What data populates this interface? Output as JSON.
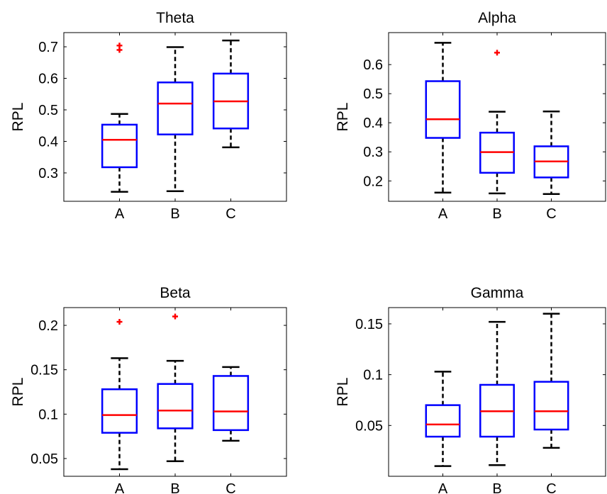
{
  "chart_data": [
    {
      "type": "box",
      "title": "Theta",
      "ylabel": "RPL",
      "categories": [
        "A",
        "B",
        "C"
      ],
      "ylim": [
        0.21,
        0.745
      ],
      "yticks": [
        0.3,
        0.4,
        0.5,
        0.6,
        0.7
      ],
      "ytick_labels": [
        "0.3",
        "0.4",
        "0.5",
        "0.6",
        "0.7"
      ],
      "boxes": [
        {
          "category": "A",
          "whisker_low": 0.24,
          "q1": 0.318,
          "median": 0.405,
          "q3": 0.453,
          "whisker_high": 0.487,
          "outliers": [
            0.704,
            0.69
          ]
        },
        {
          "category": "B",
          "whisker_low": 0.242,
          "q1": 0.422,
          "median": 0.52,
          "q3": 0.587,
          "whisker_high": 0.699,
          "outliers": []
        },
        {
          "category": "C",
          "whisker_low": 0.381,
          "q1": 0.441,
          "median": 0.527,
          "q3": 0.615,
          "whisker_high": 0.72,
          "outliers": []
        }
      ]
    },
    {
      "type": "box",
      "title": "Alpha",
      "ylabel": "RPL",
      "categories": [
        "A",
        "B",
        "C"
      ],
      "ylim": [
        0.13,
        0.71
      ],
      "yticks": [
        0.2,
        0.3,
        0.4,
        0.5,
        0.6
      ],
      "ytick_labels": [
        "0.2",
        "0.3",
        "0.4",
        "0.5",
        "0.6"
      ],
      "boxes": [
        {
          "category": "A",
          "whisker_low": 0.16,
          "q1": 0.348,
          "median": 0.412,
          "q3": 0.543,
          "whisker_high": 0.675,
          "outliers": []
        },
        {
          "category": "B",
          "whisker_low": 0.157,
          "q1": 0.228,
          "median": 0.299,
          "q3": 0.366,
          "whisker_high": 0.438,
          "outliers": [
            0.641
          ]
        },
        {
          "category": "C",
          "whisker_low": 0.155,
          "q1": 0.212,
          "median": 0.267,
          "q3": 0.319,
          "whisker_high": 0.439,
          "outliers": []
        }
      ]
    },
    {
      "type": "box",
      "title": "Beta",
      "ylabel": "RPL",
      "categories": [
        "A",
        "B",
        "C"
      ],
      "ylim": [
        0.03,
        0.22
      ],
      "yticks": [
        0.05,
        0.1,
        0.15,
        0.2
      ],
      "ytick_labels": [
        "0.05",
        "0.1",
        "0.15",
        "0.2"
      ],
      "boxes": [
        {
          "category": "A",
          "whisker_low": 0.038,
          "q1": 0.079,
          "median": 0.099,
          "q3": 0.128,
          "whisker_high": 0.163,
          "outliers": [
            0.204
          ]
        },
        {
          "category": "B",
          "whisker_low": 0.047,
          "q1": 0.084,
          "median": 0.104,
          "q3": 0.134,
          "whisker_high": 0.16,
          "outliers": [
            0.21
          ]
        },
        {
          "category": "C",
          "whisker_low": 0.07,
          "q1": 0.082,
          "median": 0.103,
          "q3": 0.143,
          "whisker_high": 0.153,
          "outliers": []
        }
      ]
    },
    {
      "type": "box",
      "title": "Gamma",
      "ylabel": "RPL",
      "categories": [
        "A",
        "B",
        "C"
      ],
      "ylim": [
        0.0,
        0.166
      ],
      "yticks": [
        0.05,
        0.1,
        0.15
      ],
      "ytick_labels": [
        "0.05",
        "0.1",
        "0.15"
      ],
      "boxes": [
        {
          "category": "A",
          "whisker_low": 0.01,
          "q1": 0.039,
          "median": 0.051,
          "q3": 0.07,
          "whisker_high": 0.103,
          "outliers": []
        },
        {
          "category": "B",
          "whisker_low": 0.011,
          "q1": 0.039,
          "median": 0.064,
          "q3": 0.09,
          "whisker_high": 0.152,
          "outliers": []
        },
        {
          "category": "C",
          "whisker_low": 0.028,
          "q1": 0.046,
          "median": 0.064,
          "q3": 0.093,
          "whisker_high": 0.16,
          "outliers": []
        }
      ]
    }
  ],
  "colors": {
    "box": "#0000ff",
    "median": "#ff0000",
    "outlier": "#ff0000",
    "whisker": "#000000",
    "axes": "#000000"
  }
}
